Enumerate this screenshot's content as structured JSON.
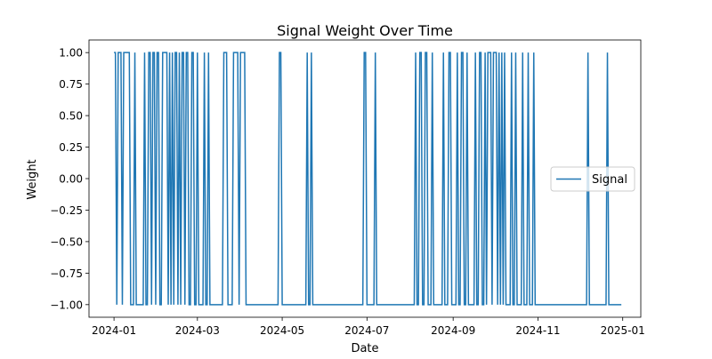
{
  "chart_data": {
    "type": "line",
    "title": "Signal Weight Over Time",
    "xlabel": "Date",
    "ylabel": "Weight",
    "x_axis": {
      "type": "date",
      "range": [
        "2023-12-14",
        "2025-01-14"
      ],
      "ticks": [
        "2024-01-01",
        "2024-03-01",
        "2024-05-01",
        "2024-07-01",
        "2024-09-01",
        "2024-11-01",
        "2025-01-01"
      ],
      "tick_labels": [
        "2024-01",
        "2024-03",
        "2024-05",
        "2024-07",
        "2024-09",
        "2024-11",
        "2025-01"
      ]
    },
    "y_axis": {
      "range": [
        -1.1,
        1.1
      ],
      "ticks": [
        -1.0,
        -0.75,
        -0.5,
        -0.25,
        0.0,
        0.25,
        0.5,
        0.75,
        1.0
      ],
      "tick_labels": [
        "−1.00",
        "−0.75",
        "−0.50",
        "−0.25",
        "0.00",
        "0.25",
        "0.50",
        "0.75",
        "1.00"
      ]
    },
    "grid": false,
    "legend": {
      "placement": "center-right"
    },
    "series": [
      {
        "name": "Signal",
        "color": "#1f77b4",
        "baseline": -1,
        "start": "2024-01-01",
        "end": "2024-12-31",
        "high_dates": [
          "2024-01-01",
          "2024-01-02",
          "2024-01-04",
          "2024-01-05",
          "2024-01-06",
          "2024-01-08",
          "2024-01-09",
          "2024-01-10",
          "2024-01-11",
          "2024-01-12",
          "2024-01-16",
          "2024-01-23",
          "2024-01-26",
          "2024-01-27",
          "2024-01-29",
          "2024-01-30",
          "2024-02-01",
          "2024-02-02",
          "2024-02-05",
          "2024-02-06",
          "2024-02-07",
          "2024-02-08",
          "2024-02-10",
          "2024-02-12",
          "2024-02-14",
          "2024-02-15",
          "2024-02-17",
          "2024-02-19",
          "2024-02-20",
          "2024-02-22",
          "2024-02-23",
          "2024-02-26",
          "2024-02-27",
          "2024-03-01",
          "2024-03-06",
          "2024-03-09",
          "2024-03-20",
          "2024-03-21",
          "2024-03-22",
          "2024-03-27",
          "2024-03-28",
          "2024-03-29",
          "2024-03-30",
          "2024-04-01",
          "2024-04-02",
          "2024-04-03",
          "2024-04-04",
          "2024-04-29",
          "2024-04-30",
          "2024-05-19",
          "2024-05-22",
          "2024-06-29",
          "2024-06-30",
          "2024-07-07",
          "2024-08-05",
          "2024-08-08",
          "2024-08-09",
          "2024-08-12",
          "2024-08-13",
          "2024-08-17",
          "2024-08-25",
          "2024-08-29",
          "2024-08-30",
          "2024-09-04",
          "2024-09-07",
          "2024-09-08",
          "2024-09-11",
          "2024-09-17",
          "2024-09-20",
          "2024-09-21",
          "2024-09-24",
          "2024-09-26",
          "2024-09-27",
          "2024-09-28",
          "2024-09-30",
          "2024-10-01",
          "2024-10-02",
          "2024-10-04",
          "2024-10-06",
          "2024-10-08",
          "2024-10-13",
          "2024-10-16",
          "2024-10-21",
          "2024-10-25",
          "2024-10-29",
          "2024-12-07",
          "2024-12-21"
        ]
      }
    ]
  }
}
